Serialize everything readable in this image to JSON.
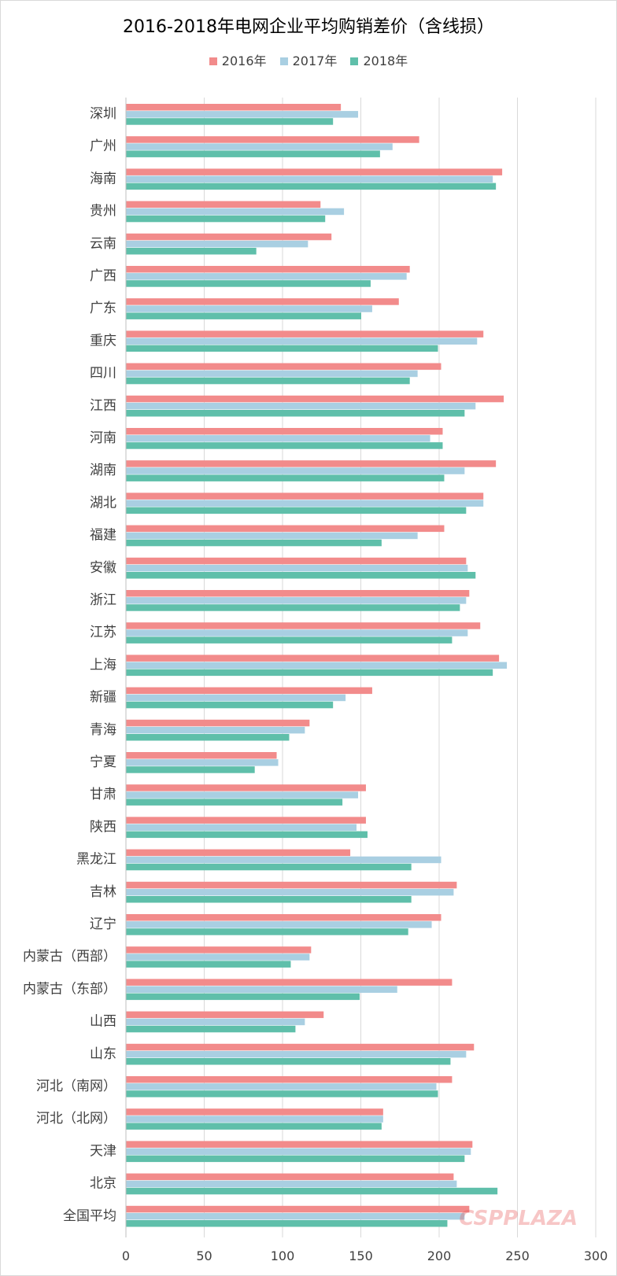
{
  "title": "2016-2018年电网企业平均购销差价（含线损）",
  "watermark": "CSPPLAZA",
  "colors": {
    "s2016": "#f28b8b",
    "s2017": "#a9cfe2",
    "s2018": "#5fbfaa",
    "grid": "#d9d9d9",
    "axis": "#bfbfbf",
    "label": "#404040"
  },
  "chart_data": {
    "type": "bar",
    "orientation": "horizontal",
    "title": "2016-2018年电网企业平均购销差价（含线损）",
    "xlabel": "",
    "ylabel": "",
    "xlim": [
      0,
      300
    ],
    "xticks": [
      "0",
      "50",
      "100",
      "150",
      "200",
      "250",
      "300"
    ],
    "legend_position": "top",
    "grid": true,
    "categories": [
      "深圳",
      "广州",
      "海南",
      "贵州",
      "云南",
      "广西",
      "广东",
      "重庆",
      "四川",
      "江西",
      "河南",
      "湖南",
      "湖北",
      "福建",
      "安徽",
      "浙江",
      "江苏",
      "上海",
      "新疆",
      "青海",
      "宁夏",
      "甘肃",
      "陕西",
      "黑龙江",
      "吉林",
      "辽宁",
      "内蒙古（西部）",
      "内蒙古（东部）",
      "山西",
      "山东",
      "河北（南网）",
      "河北（北网）",
      "天津",
      "北京",
      "全国平均"
    ],
    "series": [
      {
        "name": "2016年",
        "values": [
          137,
          187,
          240,
          124,
          131,
          181,
          174,
          228,
          201,
          241,
          202,
          236,
          228,
          203,
          217,
          219,
          226,
          238,
          157,
          117,
          96,
          153,
          153,
          143,
          211,
          201,
          118,
          208,
          126,
          222,
          208,
          164,
          221,
          209,
          219
        ]
      },
      {
        "name": "2017年",
        "values": [
          148,
          170,
          234,
          139,
          116,
          179,
          157,
          224,
          186,
          223,
          194,
          216,
          228,
          186,
          218,
          217,
          218,
          243,
          140,
          114,
          97,
          148,
          147,
          201,
          209,
          195,
          117,
          173,
          114,
          217,
          198,
          164,
          220,
          211,
          216
        ]
      },
      {
        "name": "2018年",
        "values": [
          132,
          162,
          236,
          127,
          83,
          156,
          150,
          199,
          181,
          216,
          202,
          203,
          217,
          163,
          223,
          213,
          208,
          234,
          132,
          104,
          82,
          138,
          154,
          182,
          182,
          180,
          105,
          149,
          108,
          207,
          199,
          163,
          216,
          237,
          205
        ]
      }
    ]
  }
}
